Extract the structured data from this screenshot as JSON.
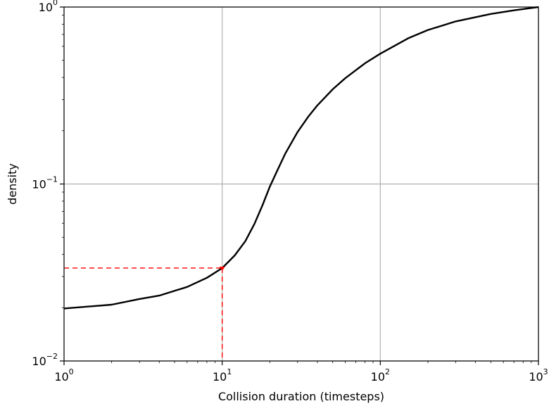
{
  "chart_data": {
    "type": "line",
    "xlabel": "Collision duration (timesteps)",
    "ylabel": "density",
    "xscale": "log",
    "yscale": "log",
    "xlim": [
      1,
      1000
    ],
    "ylim": [
      0.01,
      1
    ],
    "grid": true,
    "x_ticks": [
      {
        "base": "10",
        "exp": "0"
      },
      {
        "base": "10",
        "exp": "1"
      },
      {
        "base": "10",
        "exp": "2"
      },
      {
        "base": "10",
        "exp": "3"
      }
    ],
    "y_ticks": [
      {
        "base": "10",
        "exp": "−2"
      },
      {
        "base": "10",
        "exp": "−1"
      },
      {
        "base": "10",
        "exp": "0"
      }
    ],
    "series": [
      {
        "color": "#000000",
        "x": [
          1,
          2,
          3,
          4,
          6,
          8,
          10,
          12,
          14,
          16,
          18,
          20,
          22,
          25,
          30,
          35,
          40,
          50,
          60,
          80,
          100,
          150,
          200,
          300,
          500,
          700,
          1000
        ],
        "y": [
          0.0198,
          0.0208,
          0.0224,
          0.0234,
          0.0262,
          0.0295,
          0.0335,
          0.0395,
          0.0475,
          0.0595,
          0.076,
          0.0965,
          0.116,
          0.148,
          0.197,
          0.24,
          0.278,
          0.343,
          0.396,
          0.481,
          0.545,
          0.666,
          0.742,
          0.83,
          0.914,
          0.958,
          1.0
        ]
      }
    ],
    "marker": {
      "x": 10,
      "y": 0.0335,
      "color": "#ff0000",
      "guide_lines": "dashed"
    }
  }
}
